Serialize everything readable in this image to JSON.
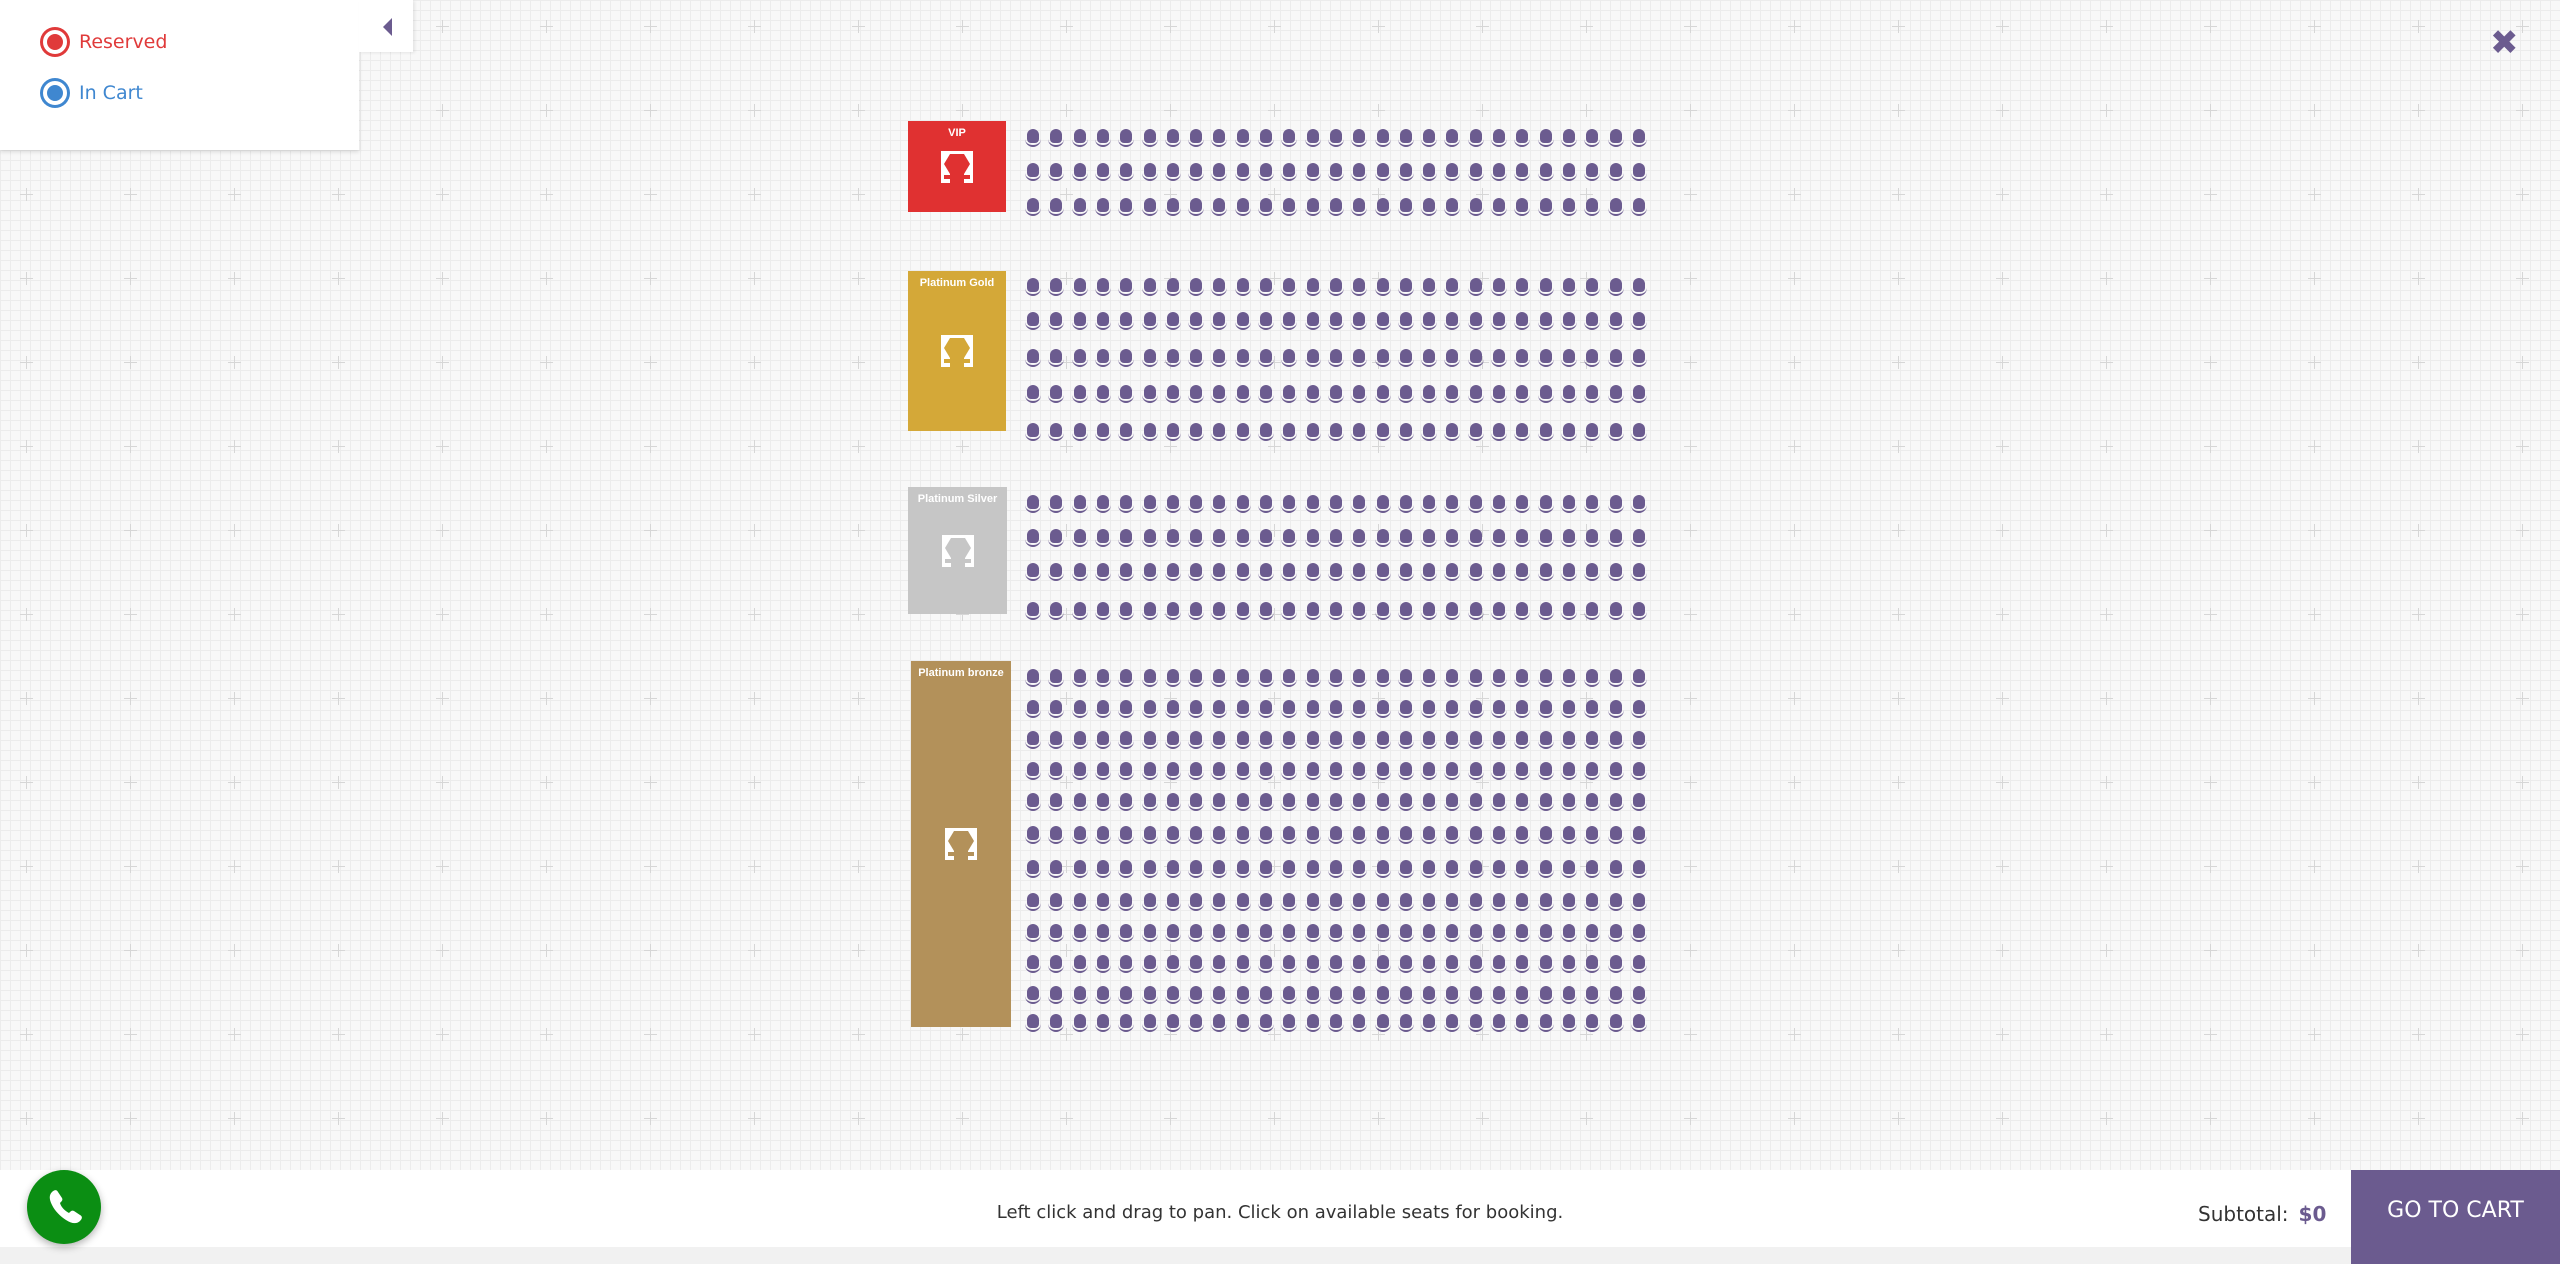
{
  "legend": {
    "items": [
      {
        "label": "Reserved",
        "color": "#e03a3a"
      },
      {
        "label": "In Cart",
        "color": "#3f87d0"
      }
    ],
    "toggle_icon": "caret-left-icon"
  },
  "close_icon": "close-icon",
  "seat_color": "#6b5b8f",
  "sections": [
    {
      "name": "VIP",
      "color": "#e03131",
      "rows": 3,
      "seats_per_row": 27
    },
    {
      "name": "Platinum Gold",
      "color": "#d4a838",
      "rows": 5,
      "seats_per_row": 27
    },
    {
      "name": "Platinum Silver",
      "color": "#c6c6c6",
      "rows": 4,
      "seats_per_row": 27
    },
    {
      "name": "Platinum bronze",
      "color": "#b3915a",
      "rows": 12,
      "seats_per_row": 27
    }
  ],
  "footer": {
    "hint": "Left click and drag to pan. Click on available seats for booking.",
    "subtotal_label": "Subtotal:",
    "subtotal_value": "$0",
    "go_to_cart": "GO TO CART",
    "phone_icon": "phone-icon"
  }
}
